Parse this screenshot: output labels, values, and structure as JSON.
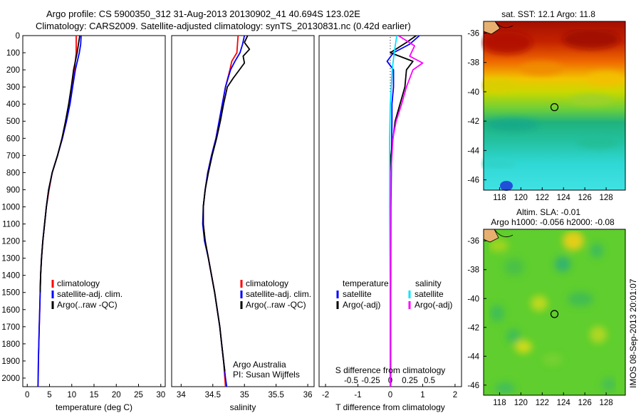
{
  "header": {
    "line1": "Argo profile: CS 5900350_312 31-Aug-2013 20130902_41 40.694S 123.02E",
    "line2": "Climatology: CARS2009. Satellite-adjusted climatology: synTS_20130831.nc (0.42d earlier)"
  },
  "side_text": "IMOS 08-Sep-2013 20:01:07",
  "colors": {
    "climatology": "#ff0000",
    "satellite": "#0000ff",
    "argo": "#000000",
    "salinity_satellite": "#00e5ff",
    "salinity_argo": "#ff00ff"
  },
  "chart_data": [
    {
      "id": "temperature",
      "type": "line",
      "xlabel": "temperature (deg C)",
      "ylabel": "",
      "xlim": [
        -1,
        31
      ],
      "ylim": [
        2050,
        0
      ],
      "xticks": [
        0,
        5,
        10,
        15,
        20,
        25,
        30
      ],
      "yticks": [
        0,
        100,
        200,
        300,
        400,
        500,
        600,
        700,
        800,
        900,
        1000,
        1100,
        1200,
        1300,
        1400,
        1500,
        1600,
        1700,
        1800,
        1900,
        2000
      ],
      "legend": [
        "climatology",
        "satellite-adj. clim.",
        "Argo(..raw -QC)"
      ],
      "series": [
        {
          "name": "climatology",
          "color": "#ff0000",
          "depth": [
            0,
            100,
            200,
            300,
            400,
            500,
            600,
            700,
            800,
            900,
            1000,
            1100,
            1200,
            1300,
            1400,
            1500,
            1600,
            1700,
            1800,
            1900,
            2000,
            2050
          ],
          "values": [
            11.0,
            11.0,
            10.6,
            10.1,
            9.5,
            8.8,
            7.9,
            6.8,
            5.6,
            4.9,
            4.3,
            3.9,
            3.5,
            3.2,
            3.0,
            2.9,
            2.8,
            2.7,
            2.6,
            2.5,
            2.45,
            2.4
          ]
        },
        {
          "name": "satellite-adj. clim.",
          "color": "#0000ff",
          "depth": [
            0,
            50,
            100,
            200,
            300,
            400,
            500,
            600,
            700,
            800,
            900,
            1000,
            1100,
            1200,
            1300,
            1400,
            1500,
            1600,
            1700,
            1800,
            1900,
            2000,
            2050
          ],
          "values": [
            12.1,
            12.0,
            11.7,
            10.8,
            10.2,
            9.6,
            8.8,
            7.9,
            6.8,
            5.6,
            4.8,
            4.3,
            3.9,
            3.5,
            3.2,
            3.0,
            2.9,
            2.8,
            2.7,
            2.6,
            2.5,
            2.45,
            2.4
          ]
        },
        {
          "name": "Argo(..raw -QC)",
          "color": "#000000",
          "depth": [
            0,
            50,
            100,
            150,
            200,
            300,
            400,
            500,
            600,
            700,
            800,
            900,
            1000,
            1100,
            1200,
            1300,
            1400,
            1500
          ],
          "values": [
            11.8,
            11.5,
            11.2,
            10.8,
            10.4,
            9.9,
            9.3,
            8.6,
            7.8,
            6.8,
            5.6,
            4.8,
            4.3,
            3.9,
            3.5,
            3.2,
            3.0,
            2.9
          ]
        }
      ]
    },
    {
      "id": "salinity",
      "type": "line",
      "xlabel": "salinity",
      "ylabel": "",
      "xlim": [
        33.85,
        36.1
      ],
      "ylim": [
        2050,
        0
      ],
      "xticks": [
        34,
        34.5,
        35,
        35.5,
        36
      ],
      "legend": [
        "climatology",
        "satellite-adj. clim.",
        "Argo(..raw -QC)"
      ],
      "annotation": [
        "Argo Australia",
        "PI: Susan Wijffels"
      ],
      "series": [
        {
          "name": "climatology",
          "color": "#ff0000",
          "depth": [
            0,
            100,
            150,
            200,
            300,
            400,
            500,
            600,
            700,
            800,
            900,
            1000,
            1100,
            1200,
            1300,
            1400,
            1500,
            1600,
            1700,
            1800,
            1900,
            2000,
            2050
          ],
          "values": [
            34.9,
            34.88,
            34.8,
            34.77,
            34.7,
            34.65,
            34.6,
            34.55,
            34.48,
            34.42,
            34.38,
            34.35,
            34.35,
            34.38,
            34.43,
            34.48,
            34.53,
            34.57,
            34.61,
            34.64,
            34.67,
            34.69,
            34.7
          ]
        },
        {
          "name": "satellite-adj. clim.",
          "color": "#0000ff",
          "depth": [
            0,
            50,
            100,
            150,
            200,
            300,
            400,
            500,
            600,
            700,
            800,
            900,
            1000,
            1100,
            1200,
            1300,
            1400,
            1500,
            1600,
            1700,
            1800,
            1900,
            2000,
            2050
          ],
          "values": [
            35.0,
            34.97,
            34.93,
            34.85,
            34.78,
            34.7,
            34.65,
            34.6,
            34.55,
            34.48,
            34.42,
            34.38,
            34.35,
            34.34,
            34.37,
            34.43,
            34.48,
            34.53,
            34.57,
            34.61,
            34.64,
            34.67,
            34.7,
            34.72
          ]
        },
        {
          "name": "Argo(..raw -QC)",
          "color": "#000000",
          "depth": [
            0,
            40,
            80,
            120,
            160,
            200,
            250,
            300,
            400,
            500,
            600,
            700,
            800,
            900,
            1000,
            1100,
            1200,
            1300,
            1400,
            1500,
            1600,
            1700,
            1800,
            1900,
            1960
          ],
          "values": [
            35.05,
            35.0,
            35.08,
            34.98,
            35.0,
            34.92,
            34.82,
            34.73,
            34.67,
            34.62,
            34.56,
            34.49,
            34.43,
            34.38,
            34.35,
            34.35,
            34.38,
            34.43,
            34.48,
            34.53,
            34.57,
            34.61,
            34.64,
            34.67,
            34.69
          ]
        }
      ]
    },
    {
      "id": "difference",
      "type": "line",
      "xlabel": "T difference from climatology",
      "top_xlabel": "S difference from climatology",
      "xlim": [
        -2.2,
        2.2
      ],
      "ylim": [
        2050,
        0
      ],
      "xticks": [
        -2,
        -1,
        0,
        1,
        2
      ],
      "xticklabels": [
        "-2",
        "-1",
        "0",
        "1",
        "2"
      ],
      "top_ticks": [
        -0.5,
        -0.25,
        0,
        0.25,
        0.5
      ],
      "top_ticklabels": [
        "-0.5",
        "-0.25",
        "0",
        "0.25",
        "0.5"
      ],
      "legend_headers": [
        "temperature",
        "salinity"
      ],
      "legend": [
        "satellite",
        "Argo(-adj)",
        "satellite",
        "Argo(-adj)"
      ],
      "series": [
        {
          "name": "satellite",
          "group": "temperature",
          "color": "#0000ff",
          "depth": [
            0,
            50,
            100,
            150,
            200,
            300,
            400,
            500,
            1000,
            1500,
            2000,
            2050
          ],
          "values": [
            0.9,
            0.6,
            0.1,
            -0.1,
            0.1,
            0.1,
            0.05,
            0.05,
            0.02,
            0.01,
            0.01,
            0.01
          ]
        },
        {
          "name": "Argo(-adj)",
          "group": "temperature",
          "color": "#000000",
          "depth": [
            0,
            40,
            100,
            150,
            200,
            300,
            400,
            500,
            650,
            700,
            800,
            1000,
            1500
          ],
          "values": [
            0.8,
            0.5,
            0.0,
            0.7,
            0.5,
            0.45,
            0.3,
            0.15,
            0.05,
            0.02,
            0.01,
            0.0,
            0.0
          ]
        },
        {
          "name": "satellite",
          "group": "salinity",
          "color": "#00e5ff",
          "depth": [
            0,
            100,
            200,
            400,
            600,
            1000,
            1500,
            2000,
            2050
          ],
          "values": [
            0.2,
            0.12,
            0.06,
            0.0,
            -0.02,
            -0.02,
            0.0,
            0.0,
            0.0
          ]
        },
        {
          "name": "Argo(-adj)",
          "group": "salinity",
          "color": "#ff00ff",
          "depth": [
            0,
            60,
            120,
            160,
            200,
            300,
            400,
            500,
            600,
            700,
            800,
            1000,
            1500,
            2000,
            2050
          ],
          "values": [
            0.25,
            0.75,
            0.6,
            1.0,
            0.7,
            0.5,
            0.35,
            0.18,
            0.08,
            0.05,
            0.02,
            0.01,
            0.0,
            0.0,
            0.0
          ]
        }
      ]
    },
    {
      "id": "sst-map",
      "type": "heatmap",
      "title": "sat. SST: 12.1  Argo: 11.8",
      "xlim": [
        116.5,
        129.8
      ],
      "ylim": [
        -46.7,
        -35.2
      ],
      "xticks": [
        118,
        120,
        122,
        124,
        126,
        128
      ],
      "yticks": [
        -36,
        -38,
        -40,
        -42,
        -44,
        -46
      ],
      "marker": {
        "lon": 123.02,
        "lat": -40.694
      }
    },
    {
      "id": "sla-map",
      "type": "heatmap",
      "title": [
        "Altim. SLA: -0.01",
        "Argo h1000: -0.056 h2000: -0.08"
      ],
      "xlim": [
        116.5,
        129.8
      ],
      "ylim": [
        -46.7,
        -35.2
      ],
      "xticks": [
        118,
        120,
        122,
        124,
        126,
        128
      ],
      "yticks": [
        -36,
        -38,
        -40,
        -42,
        -44,
        -46
      ],
      "marker": {
        "lon": 123.02,
        "lat": -40.694
      }
    }
  ]
}
